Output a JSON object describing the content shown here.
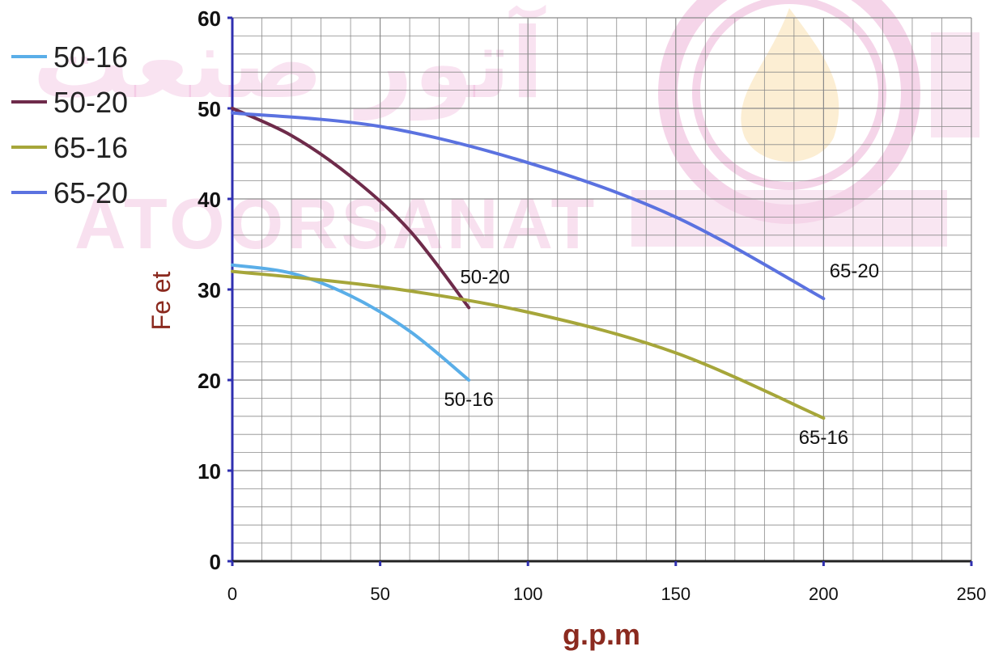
{
  "watermark": {
    "text_en": "ATOORSANAT",
    "text_fa": "آتور صنعت"
  },
  "chart_data": {
    "type": "line",
    "title": "",
    "xlabel": "g.p.m",
    "ylabel": "Fe et",
    "xlim": [
      0,
      250
    ],
    "ylim": [
      0,
      60
    ],
    "x_ticks": [
      0,
      50,
      100,
      150,
      200,
      250
    ],
    "y_ticks": [
      0,
      10,
      20,
      30,
      40,
      50,
      60
    ],
    "grid": true,
    "legend_position": "top-left (outside plot)",
    "colors": {
      "axis_label": "#8b2a1f",
      "axis": "#2f2fb0",
      "grid": "#8a8a8a",
      "watermark": "#d646a0"
    },
    "series": [
      {
        "name": "50-16",
        "color": "#5aaee8",
        "label": "50-16",
        "x": [
          0,
          20,
          40,
          60,
          80
        ],
        "y": [
          32.7,
          31.8,
          29.3,
          25.4,
          20.0
        ]
      },
      {
        "name": "50-20",
        "color": "#6e2b4a",
        "label": "50-20",
        "x": [
          0,
          20,
          40,
          60,
          80
        ],
        "y": [
          50.0,
          47.0,
          42.5,
          36.5,
          28.0
        ]
      },
      {
        "name": "65-16",
        "color": "#a6a63a",
        "label": "65-16",
        "x": [
          0,
          50,
          100,
          150,
          200
        ],
        "y": [
          32.0,
          30.3,
          27.5,
          23.0,
          15.8
        ]
      },
      {
        "name": "65-20",
        "color": "#5b72e0",
        "label": "65-20",
        "x": [
          0,
          50,
          100,
          150,
          200
        ],
        "y": [
          49.5,
          48.0,
          44.0,
          38.0,
          29.0
        ]
      }
    ]
  }
}
